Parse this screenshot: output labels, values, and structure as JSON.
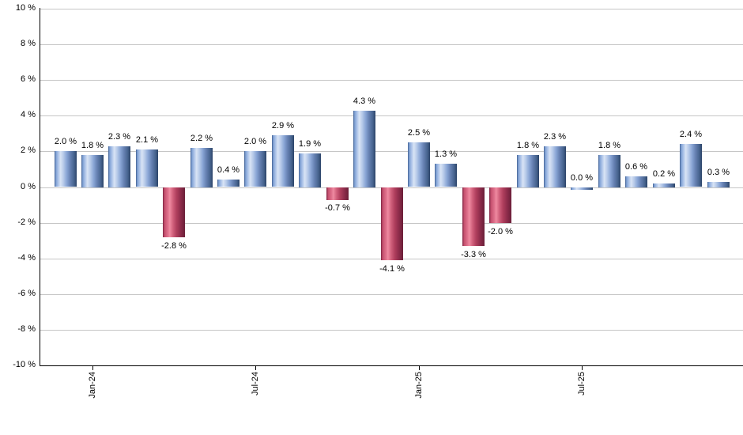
{
  "chart_data": {
    "type": "bar",
    "title": "",
    "xlabel": "",
    "ylabel": "",
    "unit": "%",
    "values": [
      2.0,
      1.8,
      2.3,
      2.1,
      -2.8,
      2.2,
      0.4,
      2.0,
      2.9,
      1.9,
      -0.7,
      4.3,
      -4.1,
      2.5,
      1.3,
      -3.3,
      -2.0,
      1.8,
      2.3,
      0.0,
      1.8,
      0.6,
      0.2,
      2.4,
      0.3
    ],
    "value_labels": [
      "2.0 %",
      "1.8 %",
      "2.3 %",
      "2.1 %",
      "-2.8 %",
      "2.2 %",
      "0.4 %",
      "2.0 %",
      "2.9 %",
      "1.9 %",
      "-0.7 %",
      "4.3 %",
      "-4.1 %",
      "2.5 %",
      "1.3 %",
      "-3.3 %",
      "-2.0 %",
      "1.8 %",
      "2.3 %",
      "0.0 %",
      "1.8 %",
      "0.6 %",
      "0.2 %",
      "2.4 %",
      "0.3 %"
    ],
    "x_ticks": [
      {
        "label": "Jan-24",
        "bar_index": 1
      },
      {
        "label": "Jul-24",
        "bar_index": 7
      },
      {
        "label": "Jan-25",
        "bar_index": 13
      },
      {
        "label": "Jul-25",
        "bar_index": 19
      }
    ],
    "y_ticks": [
      "10 %",
      "8 %",
      "6 %",
      "4 %",
      "2 %",
      "0 %",
      "-2 %",
      "-4 %",
      "-6 %",
      "-8 %",
      "-10 %"
    ],
    "ylim": [
      -10,
      10
    ],
    "y_step": 2,
    "grid": true,
    "legend": false,
    "colors": {
      "positive_bar": "#8aa6d6",
      "positive_bar_dark": "#2b4368",
      "positive_bar_light": "#d9e4f5",
      "negative_bar": "#c5506e",
      "negative_bar_dark": "#6b1f38",
      "negative_bar_light": "#ef8ba1",
      "gridline": "#c6c6c6",
      "axis": "#000000",
      "text": "#000000",
      "background": "#ffffff"
    }
  }
}
